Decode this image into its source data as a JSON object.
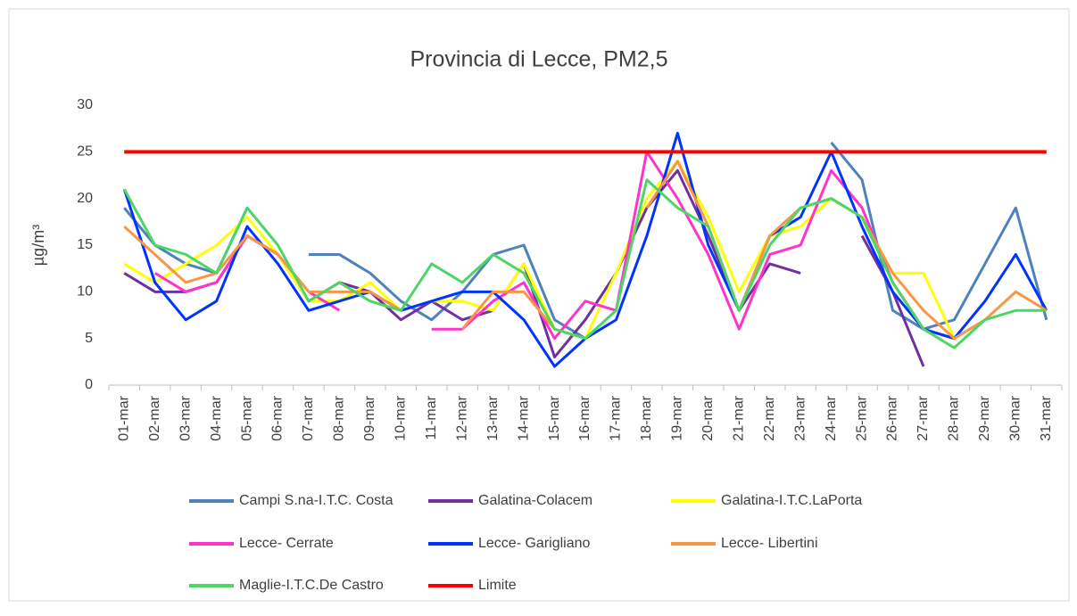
{
  "chart_data": {
    "type": "line",
    "title": "Provincia di Lecce, PM2,5",
    "y_label": "µg/m³",
    "categories": [
      "01-mar",
      "02-mar",
      "03-mar",
      "04-mar",
      "05-mar",
      "06-mar",
      "07-mar",
      "08-mar",
      "09-mar",
      "10-mar",
      "11-mar",
      "12-mar",
      "13-mar",
      "14-mar",
      "15-mar",
      "16-mar",
      "17-mar",
      "18-mar",
      "19-mar",
      "20-mar",
      "21-mar",
      "22-mar",
      "23-mar",
      "24-mar",
      "25-mar",
      "26-mar",
      "27-mar",
      "28-mar",
      "29-mar",
      "30-mar",
      "31-mar"
    ],
    "series": [
      {
        "name": "Campi S.na-I.T.C. Costa",
        "color": "#4f81bd",
        "values": [
          19,
          15,
          13,
          12,
          19,
          null,
          14,
          14,
          12,
          9,
          7,
          10,
          14,
          15,
          7,
          5,
          null,
          null,
          null,
          null,
          null,
          null,
          null,
          26,
          22,
          8,
          6,
          7,
          13,
          19,
          7
        ]
      },
      {
        "name": "Galatina-Colacem",
        "color": "#7030a0",
        "values": [
          12,
          10,
          10,
          11,
          16,
          14,
          9,
          11,
          10,
          7,
          9,
          7,
          8,
          13,
          3,
          7,
          12,
          19,
          23,
          16,
          8,
          13,
          12,
          null,
          16,
          10,
          2,
          null,
          null,
          null,
          null
        ]
      },
      {
        "name": "Galatina-I.T.C.LaPorta",
        "color": "#ffff00",
        "values": [
          13,
          11,
          13,
          15,
          18,
          14,
          9,
          9,
          11,
          8,
          9,
          9,
          8,
          13,
          6,
          5,
          12,
          20,
          24,
          18,
          10,
          16,
          17,
          20,
          18,
          12,
          12,
          5,
          null,
          null,
          null
        ]
      },
      {
        "name": "Lecce- Cerrate",
        "color": "#ff33cc",
        "values": [
          null,
          12,
          10,
          11,
          16,
          14,
          10,
          8,
          null,
          null,
          6,
          6,
          9,
          11,
          5,
          9,
          8,
          25,
          20,
          14,
          6,
          14,
          15,
          23,
          19,
          11,
          6,
          5,
          null,
          null,
          null
        ]
      },
      {
        "name": "Lecce- Garigliano",
        "color": "#0033ff",
        "values": [
          21,
          11,
          7,
          9,
          17,
          13,
          8,
          9,
          10,
          8,
          9,
          10,
          10,
          7,
          2,
          5,
          7,
          16,
          27,
          15,
          8,
          16,
          18,
          25,
          17,
          10,
          6,
          5,
          9,
          14,
          8
        ]
      },
      {
        "name": "Lecce- Libertini",
        "color": "#f79646",
        "values": [
          17,
          14,
          11,
          12,
          16,
          14,
          10,
          10,
          10,
          8,
          null,
          6,
          10,
          10,
          6,
          null,
          null,
          19,
          24,
          17,
          8,
          16,
          19,
          20,
          18,
          12,
          8,
          5,
          7,
          10,
          8
        ]
      },
      {
        "name": "Maglie-I.T.C.De Castro",
        "color": "#4dd665",
        "values": [
          21,
          15,
          14,
          12,
          19,
          15,
          9,
          11,
          9,
          8,
          13,
          11,
          14,
          12,
          6,
          5,
          8,
          22,
          19,
          17,
          8,
          15,
          19,
          20,
          18,
          11,
          6,
          4,
          7,
          8,
          8
        ]
      },
      {
        "name": "Limite",
        "color": "#ff0000",
        "values": [
          25,
          25,
          25,
          25,
          25,
          25,
          25,
          25,
          25,
          25,
          25,
          25,
          25,
          25,
          25,
          25,
          25,
          25,
          25,
          25,
          25,
          25,
          25,
          25,
          25,
          25,
          25,
          25,
          25,
          25,
          25
        ]
      }
    ],
    "ylim": [
      0,
      30
    ],
    "yticks": [
      0,
      5,
      10,
      15,
      20,
      25,
      30
    ],
    "grid": false
  }
}
